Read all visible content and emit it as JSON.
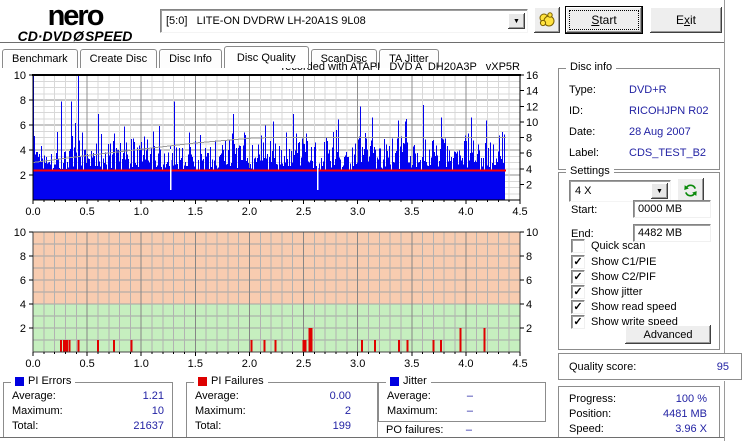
{
  "header": {
    "brand_top": "nero",
    "brand_bottom_left": "CD·DVD",
    "brand_disc": "Ø",
    "brand_bottom_right": "SPEED",
    "drive_combo": "[5:0]   LITE-ON DVDRW LH-20A1S 9L08",
    "start_button": {
      "pre": "",
      "key": "S",
      "post": "tart"
    },
    "exit_button": {
      "pre": "E",
      "key": "x",
      "post": "it"
    }
  },
  "tabs": [
    {
      "label": "Benchmark"
    },
    {
      "label": "Create Disc"
    },
    {
      "label": "Disc Info"
    },
    {
      "label": "Disc Quality"
    },
    {
      "label": "ScanDisc"
    },
    {
      "label": "TA Jitter"
    }
  ],
  "disc_info": {
    "title": "Disc info",
    "rows": [
      {
        "label": "Type:",
        "value": "DVD+R"
      },
      {
        "label": "ID:",
        "value": "RICOHJPN R02"
      },
      {
        "label": "Date:",
        "value": "28 Aug 2007"
      },
      {
        "label": "Label:",
        "value": "CDS_TEST_B2"
      }
    ]
  },
  "settings": {
    "title": "Settings",
    "speed_value": "4 X",
    "start_label": "Start:",
    "start_value": "0000 MB",
    "end_label": "End:",
    "end_value": "4482 MB",
    "checkboxes": [
      {
        "label": "Quick scan",
        "checked": false
      },
      {
        "label": "Show C1/PIE",
        "checked": true
      },
      {
        "label": "Show C2/PIF",
        "checked": true
      },
      {
        "label": "Show jitter",
        "checked": true
      },
      {
        "label": "Show read speed",
        "checked": true
      },
      {
        "label": "Show write speed",
        "checked": true
      }
    ],
    "advanced_button": "Advanced"
  },
  "quality": {
    "label": "Quality score:",
    "value": "95"
  },
  "stats": {
    "pi_errors": {
      "title": "PI Errors",
      "legend_color": "#0000e0",
      "rows": [
        {
          "label": "Average:",
          "value": "1.21"
        },
        {
          "label": "Maximum:",
          "value": "10"
        },
        {
          "label": "Total:",
          "value": "21637"
        }
      ]
    },
    "pi_failures": {
      "title": "PI Failures",
      "legend_color": "#dd0000",
      "rows": [
        {
          "label": "Average:",
          "value": "0.00"
        },
        {
          "label": "Maximum:",
          "value": "2"
        },
        {
          "label": "Total:",
          "value": "199"
        }
      ]
    },
    "jitter": {
      "title": "Jitter",
      "legend_color": "#0000e0",
      "rows": [
        {
          "label": "Average:",
          "value": "–"
        },
        {
          "label": "Maximum:",
          "value": "–"
        }
      ],
      "extra_row": {
        "label": "PO failures:",
        "value": "–"
      }
    }
  },
  "progress_panel": {
    "rows": [
      {
        "label": "Progress:",
        "value": "100 %"
      },
      {
        "label": "Position:",
        "value": "4481 MB"
      },
      {
        "label": "Speed:",
        "value": "3.96 X"
      }
    ]
  },
  "chart_data": [
    {
      "name": "pi_errors_chart",
      "type": "bar",
      "title": "recorded with ATAPI   DVD A  DH20A3P   vXP5R",
      "x_unit": "GB",
      "xlim": [
        0,
        4.5
      ],
      "x_ticks": [
        0,
        0.5,
        1,
        1.5,
        2,
        2.5,
        3,
        3.5,
        4,
        4.5
      ],
      "data_end_x": 4.37,
      "left_axis": {
        "ticks": [
          2,
          4,
          6,
          8,
          10
        ],
        "max": 10
      },
      "right_axis": {
        "ticks": [
          2,
          4,
          6,
          8,
          10,
          12,
          14,
          16
        ],
        "max": 16
      },
      "bar_color": "#0202f0",
      "noise_seed": 1337,
      "spikes": [
        [
          0.004,
          10
        ],
        [
          0.26,
          7.9
        ],
        [
          0.35,
          7.9
        ],
        [
          0.42,
          10
        ],
        [
          0.6,
          6.9
        ],
        [
          1.3,
          7.9
        ],
        [
          1.85,
          6.9
        ],
        [
          2.4,
          6.9
        ],
        [
          3.02,
          7.5
        ],
        [
          3.13,
          6.6
        ],
        [
          3.6,
          7.6
        ],
        [
          3.77,
          6.6
        ],
        [
          4.05,
          6.6
        ]
      ],
      "gaps_x": [
        1.27,
        2.63
      ],
      "read_speed_line": {
        "color": "#ff0000",
        "speed": 3.8
      },
      "write_speed_line": {
        "color": "#989898",
        "points": [
          [
            0,
            4.8
          ],
          [
            0.5,
            5.7
          ],
          [
            1.0,
            6.5
          ],
          [
            1.5,
            7.3
          ],
          [
            2.0,
            7.9
          ],
          [
            2.2,
            8.0
          ],
          [
            4.37,
            8.0
          ]
        ]
      },
      "summary": {
        "average": 1.21,
        "maximum": 10,
        "total": 21637
      }
    },
    {
      "name": "pi_failures_chart",
      "type": "bar",
      "xlim": [
        0,
        4.5
      ],
      "x_ticks": [
        0,
        0.5,
        1,
        1.5,
        2,
        2.5,
        3,
        3.5,
        4,
        4.5
      ],
      "ylim": [
        0,
        10
      ],
      "axis_ticks": [
        2,
        4,
        6,
        8,
        10
      ],
      "zones": [
        {
          "from": 4,
          "to": 10,
          "color": "#f8ccb0"
        },
        {
          "from": 0,
          "to": 4,
          "color": "#c6efbf"
        }
      ],
      "bar_color": "#e00000",
      "bars": [
        [
          0.26,
          1
        ],
        [
          0.285,
          1
        ],
        [
          0.3,
          1
        ],
        [
          0.315,
          1
        ],
        [
          0.335,
          1
        ],
        [
          0.42,
          1
        ],
        [
          0.6,
          1
        ],
        [
          0.75,
          1
        ],
        [
          0.91,
          1
        ],
        [
          2.02,
          1
        ],
        [
          2.14,
          1
        ],
        [
          2.24,
          1
        ],
        [
          2.5,
          1
        ],
        [
          2.52,
          1
        ],
        [
          2.555,
          2
        ],
        [
          2.575,
          2
        ],
        [
          3.04,
          1
        ],
        [
          3.16,
          1
        ],
        [
          3.38,
          1
        ],
        [
          3.46,
          1
        ],
        [
          3.7,
          1
        ],
        [
          3.77,
          1
        ],
        [
          3.95,
          2
        ],
        [
          4.17,
          2
        ]
      ],
      "summary": {
        "average": 0.0,
        "maximum": 2,
        "total": 199
      }
    }
  ]
}
